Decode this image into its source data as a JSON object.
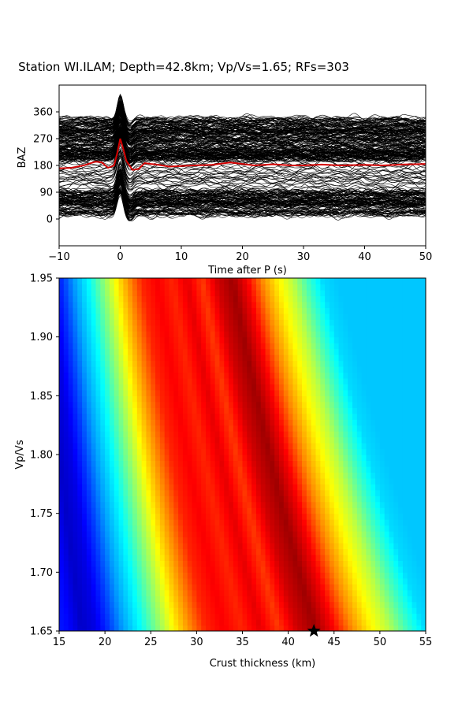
{
  "chart_data": [
    {
      "type": "line",
      "title": "Station WI.ILAM; Depth=42.8km; Vp/Vs=1.65; RFs=303",
      "xlabel": "Time after P (s)",
      "ylabel": "BAZ",
      "xlim": [
        -10,
        50
      ],
      "ylim": [
        -90,
        450
      ],
      "xticks": [
        -10,
        0,
        10,
        20,
        30,
        40,
        50
      ],
      "yticks": [
        0,
        90,
        180,
        270,
        360
      ],
      "trace_count": 303,
      "trace_color": "#000000",
      "stack_color": "#d40000",
      "stack_series": {
        "x": [
          -10,
          -8,
          -6,
          -4,
          -3,
          -2,
          -1,
          -0.5,
          0,
          0.5,
          1,
          2,
          3,
          4,
          5,
          6,
          8,
          10,
          12,
          15,
          18,
          20,
          22,
          25,
          28,
          30,
          33,
          36,
          40,
          43,
          46,
          50
        ],
        "y": [
          170,
          172,
          180,
          193,
          190,
          172,
          180,
          220,
          270,
          235,
          195,
          165,
          168,
          188,
          185,
          183,
          176,
          178,
          180,
          182,
          190,
          185,
          180,
          184,
          180,
          180,
          183,
          180,
          182,
          180,
          183,
          185
        ]
      }
    },
    {
      "type": "heatmap",
      "xlabel": "Crust thickness (km)",
      "ylabel": "Vp/Vs",
      "xlim": [
        15,
        55
      ],
      "ylim": [
        1.65,
        1.95
      ],
      "xticks": [
        15,
        20,
        25,
        30,
        35,
        40,
        45,
        50,
        55
      ],
      "yticks": [
        "1.65",
        "1.70",
        "1.75",
        "1.80",
        "1.85",
        "1.90",
        "1.95"
      ],
      "colormap": "jet",
      "best_fit": {
        "thickness": 42.8,
        "vpvs": 1.65
      },
      "marker_color": "#000000"
    }
  ]
}
